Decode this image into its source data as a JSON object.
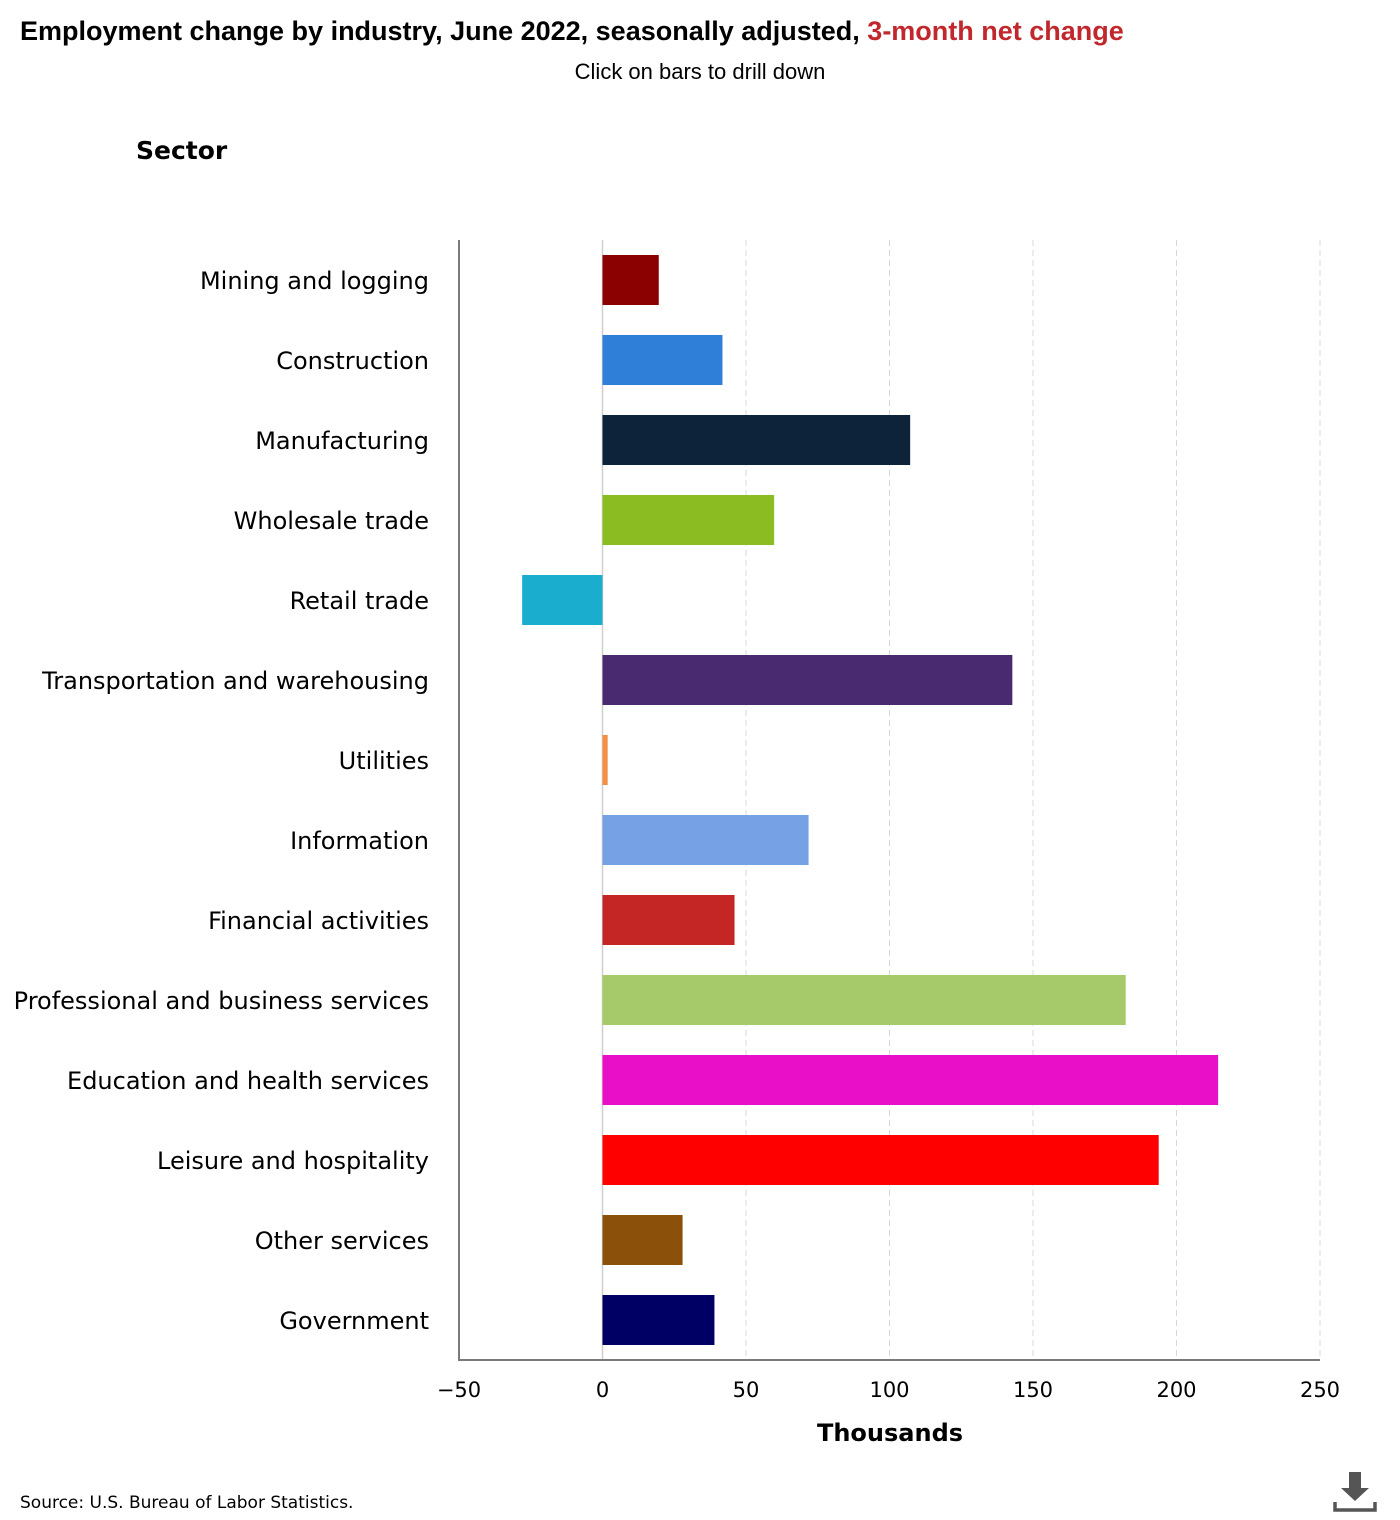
{
  "header": {
    "title_main": "Employment change by industry, June 2022, seasonally adjusted,",
    "title_highlight": "3-month net change",
    "subtitle": "Click on bars to drill down"
  },
  "footer": {
    "source": "Source: U.S. Bureau of Labor Statistics."
  },
  "chart_data": {
    "type": "bar",
    "orientation": "horizontal",
    "title": "Employment change by industry, June 2022, seasonally adjusted, 3-month net change",
    "ylabel": "Sector",
    "xlabel": "Thousands",
    "xlim": [
      -50,
      250
    ],
    "xticks": [
      -50,
      0,
      50,
      100,
      150,
      200,
      250
    ],
    "xtick_labels": [
      "−50",
      "0",
      "50",
      "100",
      "150",
      "200",
      "250"
    ],
    "grid": "vertical dashed",
    "categories": [
      "Mining and logging",
      "Construction",
      "Manufacturing",
      "Wholesale trade",
      "Retail trade",
      "Transportation and warehousing",
      "Utilities",
      "Information",
      "Financial activities",
      "Professional and business services",
      "Education and health services",
      "Leisure and hospitality",
      "Other services",
      "Government"
    ],
    "values": [
      19.6,
      41.8,
      107.2,
      59.8,
      -28,
      142.8,
      1.8,
      71.8,
      46,
      182.3,
      214.5,
      193.8,
      27.9,
      39
    ],
    "colors": [
      "#8b0000",
      "#2f7ed8",
      "#0d233a",
      "#8bbc21",
      "#1aadce",
      "#492970",
      "#f28f43",
      "#77a1e5",
      "#c42525",
      "#a6c96a",
      "#e90fc8",
      "#ff0000",
      "#8b510a",
      "#000064"
    ]
  }
}
